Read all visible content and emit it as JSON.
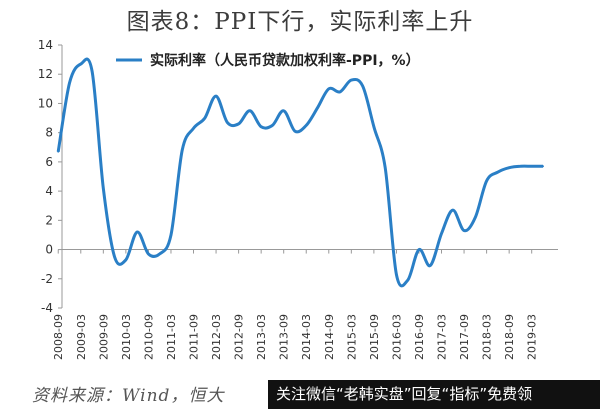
{
  "title": "图表8：PPI下行，实际利率上升",
  "source": "资料来源：Wind，恒大",
  "watermark": "关注微信“老韩实盘”回复“指标”免费领",
  "colors": {
    "line": "#2a7fc6",
    "axis": "#999999",
    "text": "#333333"
  },
  "chart_data": {
    "type": "line",
    "title": "图表8：PPI下行，实际利率上升",
    "x_ticks": [
      "2008-09",
      "2009-03",
      "2009-09",
      "2010-03",
      "2010-09",
      "2011-03",
      "2011-09",
      "2012-03",
      "2012-09",
      "2013-03",
      "2013-09",
      "2014-03",
      "2014-09",
      "2015-03",
      "2015-09",
      "2016-03",
      "2016-09",
      "2017-03",
      "2017-09",
      "2018-03",
      "2018-09",
      "2019-03"
    ],
    "ylim": [
      -4,
      14
    ],
    "y_ticks": [
      "14",
      "12",
      "10",
      "8",
      "6",
      "4",
      "2",
      "0",
      "-2",
      "-4"
    ],
    "grid": false,
    "legend": "top-left",
    "series": [
      {
        "name": "实际利率（人民币贷款加权利率-PPI，%）",
        "x": [
          "2008-09",
          "2008-12",
          "2009-03",
          "2009-06",
          "2009-09",
          "2009-12",
          "2010-03",
          "2010-06",
          "2010-09",
          "2010-12",
          "2011-03",
          "2011-06",
          "2011-09",
          "2011-12",
          "2012-03",
          "2012-06",
          "2012-09",
          "2012-12",
          "2013-03",
          "2013-06",
          "2013-09",
          "2013-12",
          "2014-03",
          "2014-06",
          "2014-09",
          "2014-12",
          "2015-03",
          "2015-06",
          "2015-09",
          "2015-12",
          "2016-03",
          "2016-06",
          "2016-09",
          "2016-12",
          "2017-03",
          "2017-06",
          "2017-09",
          "2017-12",
          "2018-03",
          "2018-06",
          "2018-09",
          "2018-12",
          "2019-03",
          "2019-06"
        ],
        "values": [
          6.7,
          11.4,
          12.7,
          12.2,
          4.2,
          -0.5,
          -0.7,
          1.2,
          -0.3,
          -0.3,
          1.0,
          6.8,
          8.3,
          9.0,
          10.5,
          8.7,
          8.6,
          9.5,
          8.4,
          8.5,
          9.5,
          8.1,
          8.5,
          9.7,
          11.0,
          10.8,
          11.6,
          11.2,
          8.4,
          5.6,
          -1.7,
          -2.1,
          0.0,
          -1.1,
          1.1,
          2.7,
          1.3,
          2.2,
          4.7,
          5.3,
          5.6,
          5.7,
          5.7,
          5.7
        ]
      }
    ]
  }
}
